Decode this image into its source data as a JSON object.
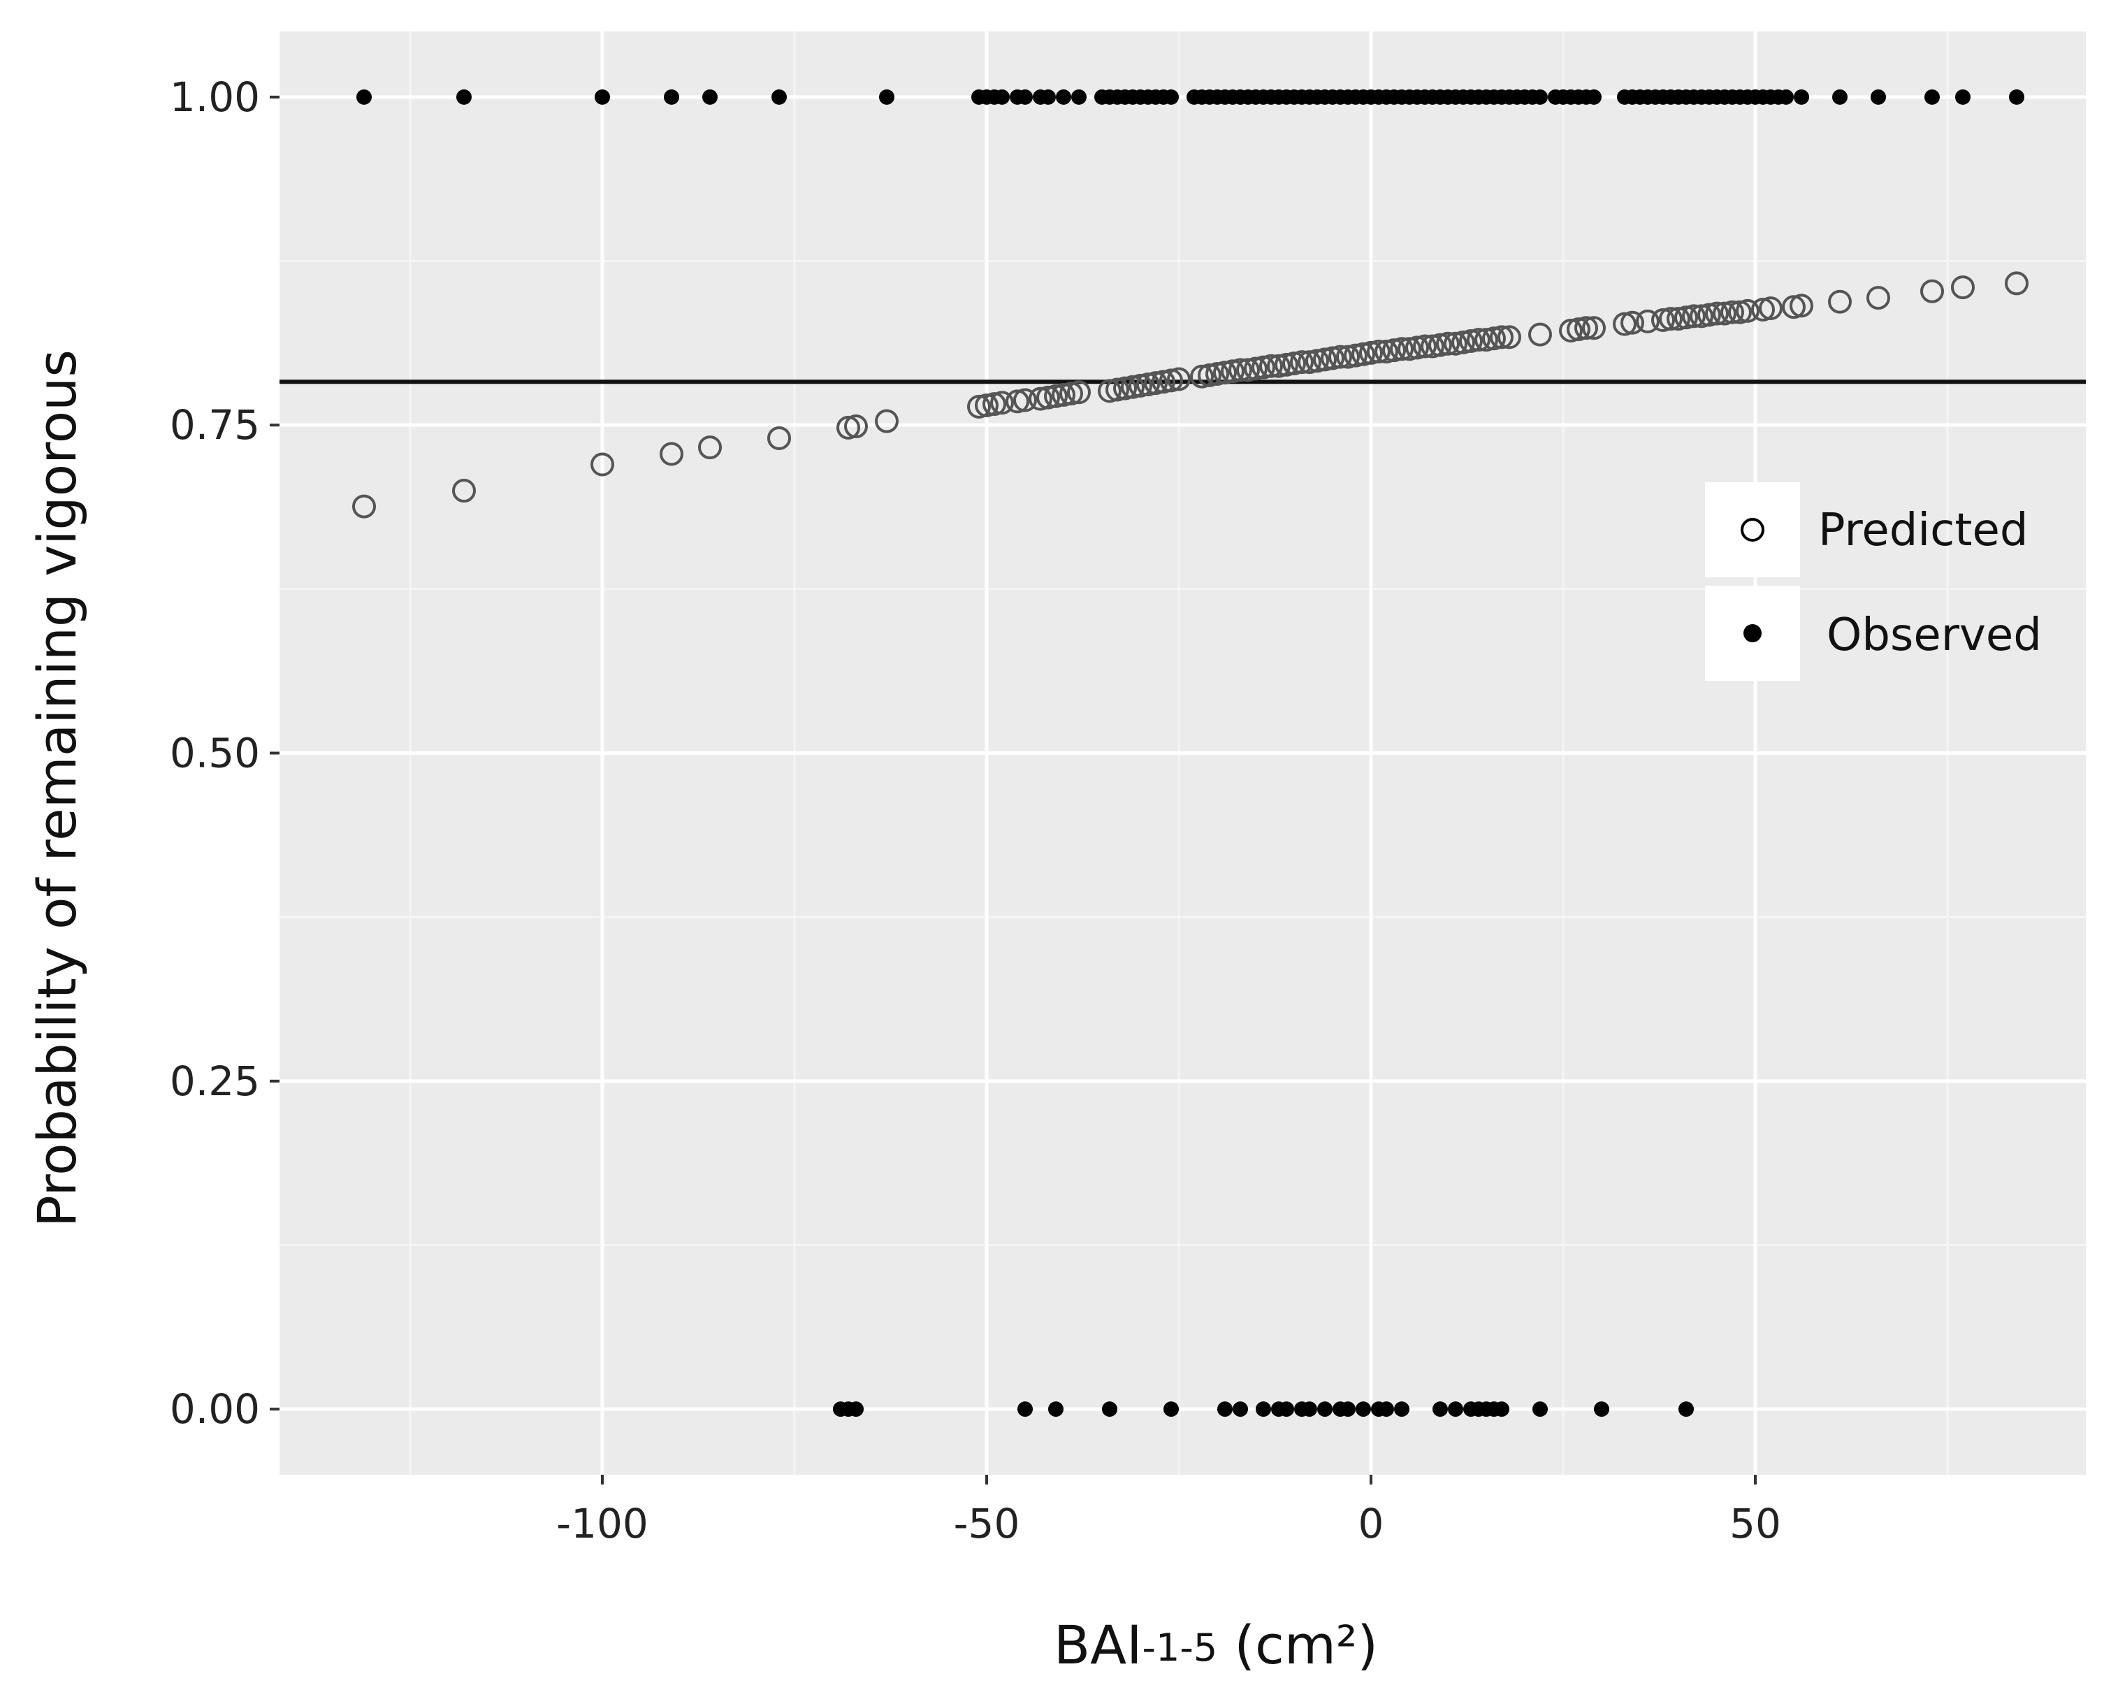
{
  "chart_data": {
    "type": "scatter",
    "xlabel": "BAI-1-5 (cm²)",
    "xlabel_main": "BAI",
    "xlabel_sub": "-1-5",
    "xlabel_unit": " (cm²)",
    "ylabel": "Probability of remaining vigorous",
    "xlim": [
      -142,
      93
    ],
    "ylim": [
      -0.05,
      1.05
    ],
    "x_ticks": [
      -100,
      -50,
      0,
      50
    ],
    "x_tick_labels": [
      "-100",
      "-50",
      "0",
      "50"
    ],
    "x_minor_grid": [
      -125,
      -75,
      -25,
      25,
      75
    ],
    "y_ticks": [
      0,
      0.25,
      0.5,
      0.75,
      1
    ],
    "y_tick_labels": [
      "0.00",
      "0.25",
      "0.50",
      "0.75",
      "1.00"
    ],
    "y_minor_grid": [
      0.125,
      0.375,
      0.625,
      0.875
    ],
    "reference_line_y": 0.783,
    "grid": true,
    "legend_position": "right",
    "series": [
      {
        "name": "Predicted",
        "marker": "open-circle",
        "x": [
          -131,
          -118,
          -100,
          -91,
          -86,
          -77,
          -68,
          -67,
          -63,
          -51,
          -50,
          -49,
          -48,
          -46,
          -45,
          -43,
          -42,
          -41,
          -40,
          -39,
          -38,
          -34,
          -33,
          -32,
          -31,
          -30,
          -29,
          -28,
          -27,
          -26,
          -25,
          -22,
          -21,
          -20,
          -19,
          -18,
          -17,
          -16,
          -15,
          -14,
          -13,
          -12,
          -11,
          -10,
          -9,
          -8,
          -7,
          -6,
          -5,
          -4,
          -3,
          -2,
          -1,
          0,
          1,
          2,
          3,
          4,
          5,
          6,
          7,
          8,
          9,
          10,
          11,
          12,
          13,
          14,
          15,
          16,
          17,
          18,
          22,
          26,
          27,
          28,
          29,
          33,
          34,
          36,
          38,
          39,
          40,
          41,
          42,
          43,
          44,
          45,
          46,
          47,
          48,
          49,
          51,
          52,
          55,
          56,
          61,
          66,
          73,
          77,
          84
        ],
        "y": [
          0.688,
          0.7,
          0.72,
          0.728,
          0.733,
          0.74,
          0.748,
          0.749,
          0.753,
          0.764,
          0.765,
          0.766,
          0.767,
          0.768,
          0.769,
          0.77,
          0.771,
          0.772,
          0.773,
          0.774,
          0.775,
          0.776,
          0.777,
          0.778,
          0.779,
          0.78,
          0.781,
          0.782,
          0.783,
          0.784,
          0.785,
          0.787,
          0.788,
          0.789,
          0.79,
          0.791,
          0.792,
          0.792,
          0.793,
          0.794,
          0.795,
          0.795,
          0.796,
          0.797,
          0.798,
          0.798,
          0.799,
          0.8,
          0.801,
          0.802,
          0.802,
          0.803,
          0.804,
          0.805,
          0.806,
          0.806,
          0.807,
          0.808,
          0.808,
          0.809,
          0.81,
          0.81,
          0.811,
          0.812,
          0.812,
          0.813,
          0.814,
          0.815,
          0.815,
          0.816,
          0.817,
          0.817,
          0.819,
          0.822,
          0.823,
          0.824,
          0.824,
          0.827,
          0.828,
          0.829,
          0.83,
          0.831,
          0.831,
          0.832,
          0.833,
          0.833,
          0.834,
          0.835,
          0.835,
          0.836,
          0.836,
          0.837,
          0.838,
          0.839,
          0.84,
          0.841,
          0.844,
          0.847,
          0.852,
          0.855,
          0.858
        ]
      },
      {
        "name": "Observed",
        "marker": "filled-circle",
        "x": [
          -131,
          -118,
          -100,
          -91,
          -86,
          -77,
          -63,
          -51,
          -50,
          -49,
          -48,
          -46,
          -45,
          -43,
          -42,
          -40,
          -38,
          -35,
          -34,
          -33,
          -32,
          -31,
          -30,
          -29,
          -28,
          -27,
          -26,
          -23,
          -22,
          -21,
          -20,
          -19,
          -18,
          -17,
          -16,
          -15,
          -14,
          -13,
          -12,
          -11,
          -10,
          -9,
          -8,
          -7,
          -6,
          -5,
          -4,
          -3,
          -2,
          -1,
          0,
          1,
          2,
          3,
          4,
          5,
          6,
          7,
          8,
          9,
          10,
          11,
          12,
          13,
          14,
          15,
          16,
          17,
          18,
          19,
          20,
          21,
          22,
          24,
          25,
          26,
          27,
          28,
          29,
          33,
          34,
          35,
          36,
          37,
          38,
          39,
          40,
          41,
          42,
          43,
          44,
          45,
          46,
          47,
          48,
          49,
          50,
          51,
          52,
          53,
          54,
          56,
          61,
          66,
          73,
          77,
          84,
          -69,
          -68,
          -67,
          -45,
          -41,
          -34,
          -26,
          -19,
          -17,
          -14,
          -12,
          -11,
          -9,
          -8,
          -6,
          -4,
          -3,
          -1,
          1,
          2,
          4,
          9,
          11,
          13,
          14,
          15,
          16,
          17,
          22,
          30,
          41
        ],
        "y": [
          1,
          1,
          1,
          1,
          1,
          1,
          1,
          1,
          1,
          1,
          1,
          1,
          1,
          1,
          1,
          1,
          1,
          1,
          1,
          1,
          1,
          1,
          1,
          1,
          1,
          1,
          1,
          1,
          1,
          1,
          1,
          1,
          1,
          1,
          1,
          1,
          1,
          1,
          1,
          1,
          1,
          1,
          1,
          1,
          1,
          1,
          1,
          1,
          1,
          1,
          1,
          1,
          1,
          1,
          1,
          1,
          1,
          1,
          1,
          1,
          1,
          1,
          1,
          1,
          1,
          1,
          1,
          1,
          1,
          1,
          1,
          1,
          1,
          1,
          1,
          1,
          1,
          1,
          1,
          1,
          1,
          1,
          1,
          1,
          1,
          1,
          1,
          1,
          1,
          1,
          1,
          1,
          1,
          1,
          1,
          1,
          1,
          1,
          1,
          1,
          1,
          1,
          1,
          1,
          1,
          1,
          1,
          0,
          0,
          0,
          0,
          0,
          0,
          0,
          0,
          0,
          0,
          0,
          0,
          0,
          0,
          0,
          0,
          0,
          0,
          0,
          0,
          0,
          0,
          0,
          0,
          0,
          0,
          0,
          0,
          0,
          0,
          0
        ]
      }
    ],
    "legend": {
      "items": [
        {
          "label": "Predicted",
          "marker": "open-circle"
        },
        {
          "label": "Observed",
          "marker": "filled-circle"
        }
      ]
    },
    "colors": {
      "panel_background": "#ebebeb",
      "grid_major": "#ffffff",
      "grid_minor": "#f5f5f5",
      "point": "#000000",
      "open_point_stroke": "#555555",
      "reference_line": "#111111",
      "legend_background": "#ffffff"
    }
  }
}
